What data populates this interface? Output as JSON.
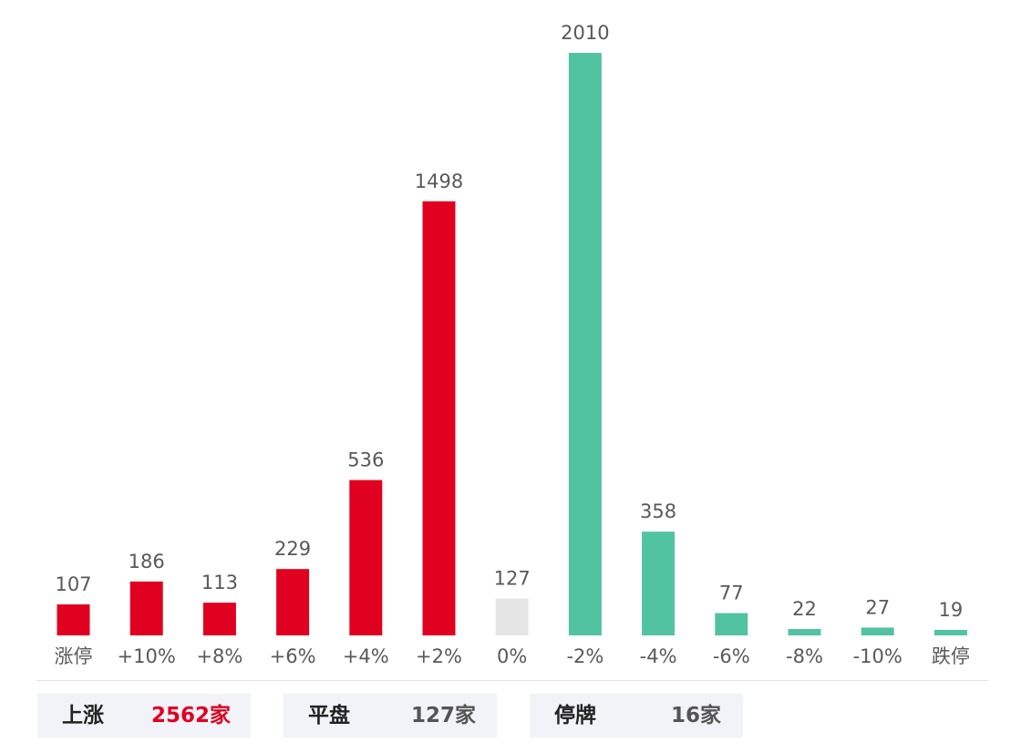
{
  "chart_data": {
    "type": "bar",
    "categories": [
      "涨停",
      "+10%",
      "+8%",
      "+6%",
      "+4%",
      "+2%",
      "0%",
      "-2%",
      "-4%",
      "-6%",
      "-8%",
      "-10%",
      "跌停"
    ],
    "values": [
      107,
      186,
      113,
      229,
      536,
      1498,
      127,
      2010,
      358,
      77,
      22,
      27,
      19
    ],
    "value_labels": [
      "107",
      "186",
      "113",
      "229",
      "536",
      "1498",
      "127",
      "2010",
      "358",
      "77",
      "22",
      "27",
      "19"
    ],
    "bar_colors": [
      "#e00020",
      "#e00020",
      "#e00020",
      "#e00020",
      "#e00020",
      "#e00020",
      "#e5e5e5",
      "#52c3a1",
      "#52c3a1",
      "#52c3a1",
      "#52c3a1",
      "#52c3a1",
      "#52c3a1"
    ],
    "ylim": [
      0,
      2010
    ],
    "grid": false,
    "legend": "none"
  },
  "summary": {
    "rise": {
      "label": "上涨",
      "value": "2562家",
      "color": "#e00020"
    },
    "flat": {
      "label": "平盘",
      "value": "127家",
      "color": "#555555"
    },
    "suspended": {
      "label": "停牌",
      "value": "16家",
      "color": "#555555"
    }
  }
}
